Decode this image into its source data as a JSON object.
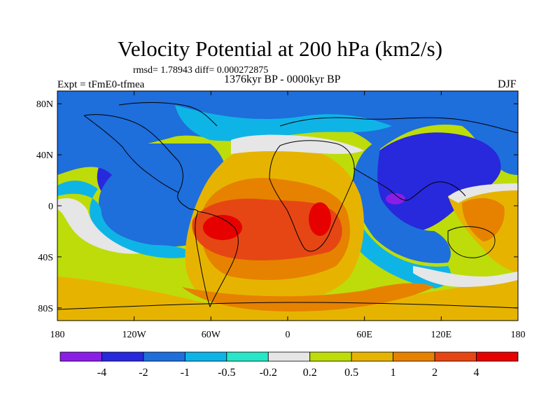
{
  "title": "Velocity Potential at 200 hPa (km2/s)",
  "stats": "rmsd= 1.78943 diff= 0.000272875",
  "experiment": "Expt = tFmE0-tfmea",
  "period": "1376kyr BP - 0000kyr BP",
  "season": "DJF",
  "axes": {
    "x_ticks": [
      {
        "label": "180",
        "lon": -180
      },
      {
        "label": "120W",
        "lon": -120
      },
      {
        "label": "60W",
        "lon": -60
      },
      {
        "label": "0",
        "lon": 0
      },
      {
        "label": "60E",
        "lon": 60
      },
      {
        "label": "120E",
        "lon": 120
      },
      {
        "label": "180",
        "lon": 180
      }
    ],
    "y_ticks": [
      {
        "label": "80N",
        "lat": 80
      },
      {
        "label": "40N",
        "lat": 40
      },
      {
        "label": "0",
        "lat": 0
      },
      {
        "label": "40S",
        "lat": -40
      },
      {
        "label": "80S",
        "lat": -80
      }
    ],
    "lon_range": [
      -180,
      180
    ],
    "lat_range": [
      -90,
      90
    ]
  },
  "colorbar": {
    "colors": [
      "#8a1ee6",
      "#2828dc",
      "#1e6edc",
      "#0fb4e6",
      "#28e6c8",
      "#e6e6e6",
      "#bedc0a",
      "#e6b400",
      "#e68200",
      "#e64614",
      "#e60000"
    ],
    "labels": [
      "-4",
      "-2",
      "-1",
      "-0.5",
      "-0.2",
      "0.2",
      "0.5",
      "1",
      "2",
      "4"
    ]
  },
  "palette": {
    "ocean_base": "#bedc0a",
    "strong_neg": "#2828dc",
    "mod_neg": "#1e6edc",
    "weak_neg": "#0fb4e6",
    "near_zero": "#e6e6e6",
    "weak_pos": "#e6b400",
    "mod_pos": "#e68200",
    "strong_pos": "#e64614",
    "max_pos": "#e60000",
    "min_neg": "#8a1ee6"
  }
}
